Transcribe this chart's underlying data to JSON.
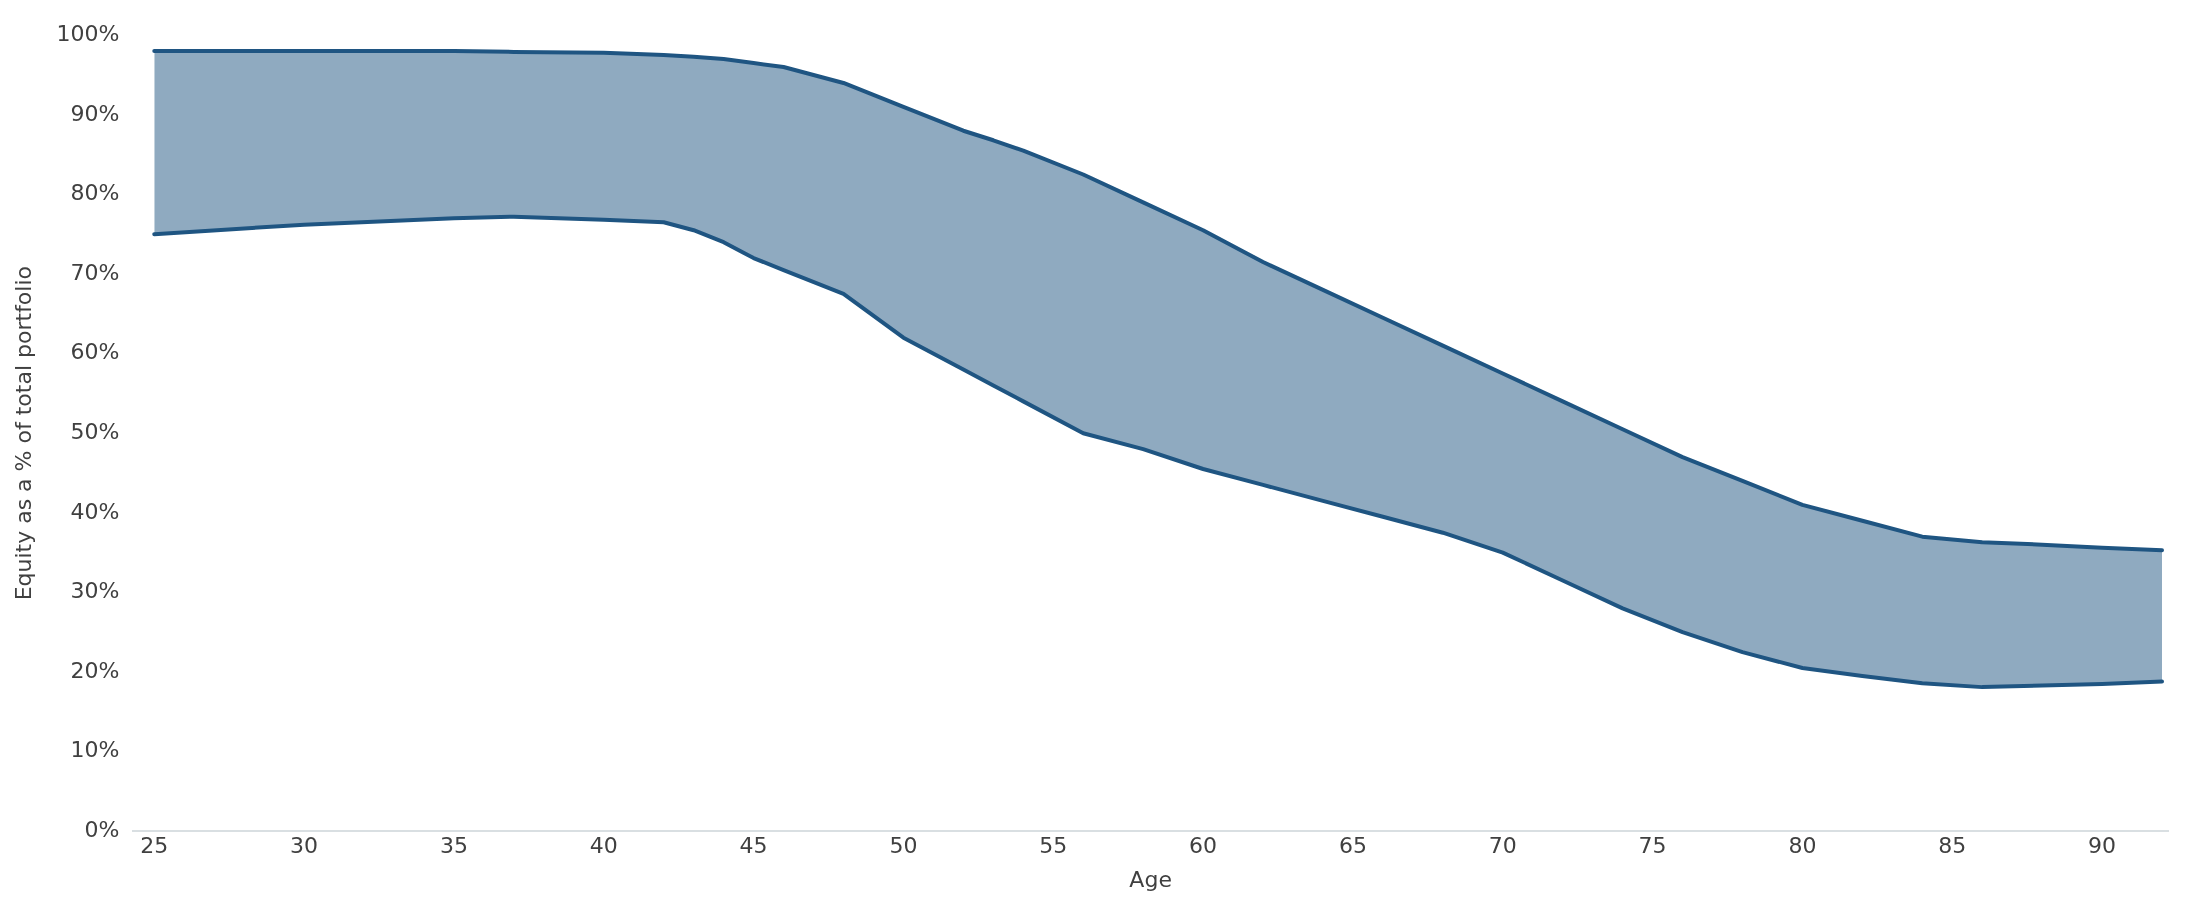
{
  "chart_data": {
    "type": "area",
    "xlabel": "Age",
    "ylabel": "Equity as a % of total portfolio",
    "xlim": [
      24.3,
      92.2
    ],
    "xticks": [
      25,
      30,
      35,
      40,
      45,
      50,
      55,
      60,
      65,
      70,
      75,
      80,
      85,
      90
    ],
    "ylim": [
      0,
      100
    ],
    "yticks": [
      {
        "value": 0,
        "label": "0%"
      },
      {
        "value": 10,
        "label": "10%"
      },
      {
        "value": 20,
        "label": "20%"
      },
      {
        "value": 30,
        "label": "30%"
      },
      {
        "value": 40,
        "label": "40%"
      },
      {
        "value": 50,
        "label": "50%"
      },
      {
        "value": 60,
        "label": "60%"
      },
      {
        "value": 70,
        "label": "70%"
      },
      {
        "value": 80,
        "label": "80%"
      },
      {
        "value": 90,
        "label": "90%"
      },
      {
        "value": 100,
        "label": "100%"
      }
    ],
    "grid": false,
    "legend": false,
    "x": [
      25,
      30,
      35,
      37,
      40,
      42,
      43,
      44,
      45,
      46,
      48,
      50,
      52,
      53,
      54,
      56,
      58,
      60,
      62,
      64,
      66,
      68,
      70,
      72,
      74,
      76,
      78,
      80,
      82,
      84,
      86,
      88,
      90,
      92
    ],
    "series": [
      {
        "color": "#1f5582",
        "values": [
          98,
          98,
          98,
          97.9,
          97.8,
          97.5,
          97.3,
          97,
          96.5,
          96,
          94,
          91,
          88,
          86.8,
          85.5,
          82.5,
          79,
          75.5,
          71.5,
          68,
          64.5,
          61,
          57.5,
          54,
          50.5,
          47,
          44,
          41,
          39,
          37,
          36.3,
          36,
          35.6,
          35.3
        ]
      },
      {
        "type": "line",
        "color": "#1f5582",
        "values": [
          75,
          76.2,
          77,
          77.2,
          76.8,
          76.5,
          75.5,
          74,
          72,
          70.5,
          67.5,
          62,
          58,
          56,
          54,
          50,
          48,
          45.5,
          43.5,
          41.5,
          39.5,
          37.5,
          35,
          31.5,
          28,
          25,
          22.5,
          20.5,
          19.5,
          18.6,
          18.1,
          18.3,
          18.5,
          18.8
        ]
      }
    ]
  }
}
